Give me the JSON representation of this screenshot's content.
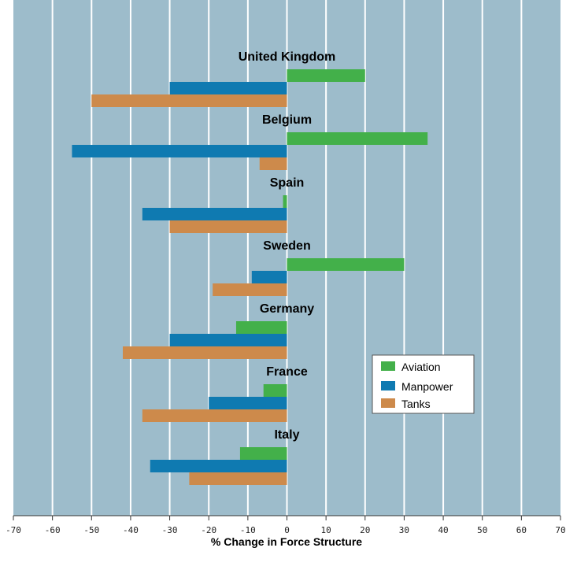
{
  "chart_data": {
    "type": "bar",
    "orientation": "horizontal",
    "xlabel": "% Change in Force Structure",
    "xlim": [
      -70,
      70
    ],
    "x_ticks": [
      -70,
      -60,
      -50,
      -40,
      -30,
      -20,
      -10,
      0,
      10,
      20,
      30,
      40,
      50,
      60,
      70
    ],
    "grid": true,
    "legend_position": "center-right",
    "background": "#9dbccb",
    "categories": [
      "United Kingdom",
      "Belgium",
      "Spain",
      "Sweden",
      "Germany",
      "France",
      "Italy"
    ],
    "series": [
      {
        "name": "Aviation",
        "color": "#43b04a",
        "values": [
          20,
          36,
          -1,
          30,
          -13,
          -6,
          -12
        ]
      },
      {
        "name": "Manpower",
        "color": "#0f7ab1",
        "values": [
          -30,
          -55,
          -37,
          -9,
          -30,
          -20,
          -35
        ]
      },
      {
        "name": "Tanks",
        "color": "#cd8a4b",
        "values": [
          -50,
          -7,
          -30,
          -19,
          -42,
          -37,
          -25
        ]
      }
    ]
  }
}
